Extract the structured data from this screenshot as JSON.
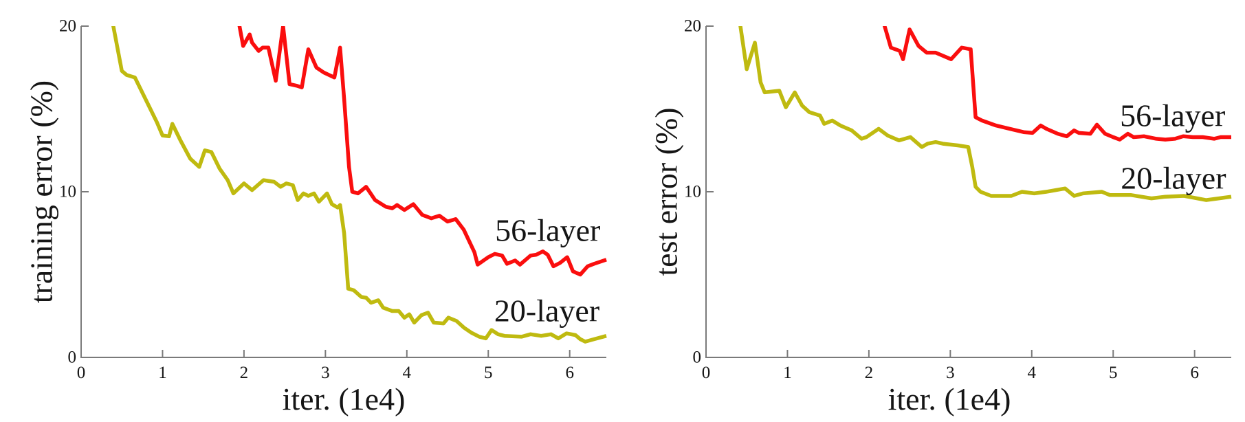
{
  "figure": {
    "background": "#ffffff",
    "description": "Two side-by-side line charts comparing 20-layer and 56-layer network error curves"
  },
  "colors": {
    "series_56_layer": "#fa0e0e",
    "series_20_layer": "#bfba10",
    "axis": "#7a7a7a",
    "text": "#151515"
  },
  "chart_data": [
    {
      "type": "line",
      "name": "training-error",
      "title": "",
      "xlabel": "iter. (1e4)",
      "ylabel": "training error (%)",
      "xlim": [
        0,
        6.45
      ],
      "ylim": [
        0,
        20
      ],
      "xticks": [
        0,
        1,
        2,
        3,
        4,
        5,
        6
      ],
      "yticks": [
        0,
        10,
        20
      ],
      "grid": false,
      "legend_position": "inline-annotations",
      "series": [
        {
          "name": "20-layer",
          "color_key": "series_20_layer",
          "points": [
            [
              0.38,
              20.4
            ],
            [
              0.5,
              17.3
            ],
            [
              0.56,
              17.05
            ],
            [
              0.66,
              16.9
            ],
            [
              0.84,
              15.1
            ],
            [
              0.93,
              14.2
            ],
            [
              1.0,
              13.4
            ],
            [
              1.08,
              13.35
            ],
            [
              1.12,
              14.1
            ],
            [
              1.22,
              13.1
            ],
            [
              1.34,
              12.0
            ],
            [
              1.45,
              11.5
            ],
            [
              1.52,
              12.5
            ],
            [
              1.6,
              12.4
            ],
            [
              1.7,
              11.4
            ],
            [
              1.8,
              10.7
            ],
            [
              1.87,
              9.9
            ],
            [
              2.0,
              10.5
            ],
            [
              2.1,
              10.1
            ],
            [
              2.24,
              10.7
            ],
            [
              2.37,
              10.6
            ],
            [
              2.45,
              10.3
            ],
            [
              2.52,
              10.5
            ],
            [
              2.6,
              10.4
            ],
            [
              2.66,
              9.5
            ],
            [
              2.73,
              9.9
            ],
            [
              2.79,
              9.75
            ],
            [
              2.86,
              9.9
            ],
            [
              2.92,
              9.4
            ],
            [
              3.02,
              9.9
            ],
            [
              3.08,
              9.25
            ],
            [
              3.15,
              9.05
            ],
            [
              3.18,
              9.2
            ],
            [
              3.23,
              7.5
            ],
            [
              3.28,
              4.15
            ],
            [
              3.35,
              4.05
            ],
            [
              3.44,
              3.65
            ],
            [
              3.5,
              3.6
            ],
            [
              3.56,
              3.3
            ],
            [
              3.65,
              3.45
            ],
            [
              3.71,
              3.0
            ],
            [
              3.82,
              2.8
            ],
            [
              3.9,
              2.8
            ],
            [
              3.97,
              2.4
            ],
            [
              4.03,
              2.6
            ],
            [
              4.09,
              2.1
            ],
            [
              4.18,
              2.55
            ],
            [
              4.26,
              2.7
            ],
            [
              4.33,
              2.1
            ],
            [
              4.45,
              2.05
            ],
            [
              4.51,
              2.4
            ],
            [
              4.61,
              2.2
            ],
            [
              4.7,
              1.8
            ],
            [
              4.79,
              1.5
            ],
            [
              4.89,
              1.25
            ],
            [
              4.97,
              1.15
            ],
            [
              5.04,
              1.65
            ],
            [
              5.12,
              1.4
            ],
            [
              5.2,
              1.3
            ],
            [
              5.41,
              1.25
            ],
            [
              5.52,
              1.4
            ],
            [
              5.65,
              1.3
            ],
            [
              5.77,
              1.4
            ],
            [
              5.86,
              1.15
            ],
            [
              5.96,
              1.45
            ],
            [
              6.07,
              1.35
            ],
            [
              6.13,
              1.1
            ],
            [
              6.19,
              0.95
            ],
            [
              6.3,
              1.1
            ],
            [
              6.45,
              1.3
            ]
          ]
        },
        {
          "name": "56-layer",
          "color_key": "series_56_layer",
          "points": [
            [
              1.93,
              20.4
            ],
            [
              1.99,
              18.8
            ],
            [
              2.07,
              19.5
            ],
            [
              2.1,
              19.0
            ],
            [
              2.18,
              18.5
            ],
            [
              2.23,
              18.7
            ],
            [
              2.3,
              18.7
            ],
            [
              2.39,
              16.7
            ],
            [
              2.48,
              20.0
            ],
            [
              2.56,
              16.5
            ],
            [
              2.65,
              16.4
            ],
            [
              2.71,
              16.3
            ],
            [
              2.79,
              18.6
            ],
            [
              2.89,
              17.5
            ],
            [
              2.98,
              17.2
            ],
            [
              3.11,
              16.9
            ],
            [
              3.18,
              18.7
            ],
            [
              3.23,
              15.6
            ],
            [
              3.29,
              11.5
            ],
            [
              3.33,
              10.0
            ],
            [
              3.4,
              9.9
            ],
            [
              3.5,
              10.3
            ],
            [
              3.61,
              9.5
            ],
            [
              3.74,
              9.1
            ],
            [
              3.82,
              9.0
            ],
            [
              3.88,
              9.2
            ],
            [
              3.97,
              8.9
            ],
            [
              4.08,
              9.25
            ],
            [
              4.19,
              8.6
            ],
            [
              4.3,
              8.4
            ],
            [
              4.4,
              8.55
            ],
            [
              4.5,
              8.2
            ],
            [
              4.6,
              8.35
            ],
            [
              4.7,
              7.7
            ],
            [
              4.83,
              6.35
            ],
            [
              4.87,
              5.6
            ],
            [
              5.0,
              6.05
            ],
            [
              5.08,
              6.25
            ],
            [
              5.17,
              6.15
            ],
            [
              5.23,
              5.65
            ],
            [
              5.33,
              5.85
            ],
            [
              5.39,
              5.6
            ],
            [
              5.52,
              6.15
            ],
            [
              5.59,
              6.2
            ],
            [
              5.67,
              6.4
            ],
            [
              5.73,
              6.2
            ],
            [
              5.8,
              5.5
            ],
            [
              5.88,
              5.7
            ],
            [
              5.97,
              6.05
            ],
            [
              6.04,
              5.2
            ],
            [
              6.13,
              5.0
            ],
            [
              6.22,
              5.5
            ],
            [
              6.3,
              5.65
            ],
            [
              6.45,
              5.9
            ]
          ]
        }
      ],
      "annotations": [
        {
          "text": "56-layer",
          "x": 5.73,
          "y": 7.68
        },
        {
          "text": "20-layer",
          "x": 5.72,
          "y": 2.82
        }
      ]
    },
    {
      "type": "line",
      "name": "test-error",
      "title": "",
      "xlabel": "iter. (1e4)",
      "ylabel": "test error (%)",
      "xlim": [
        0,
        6.45
      ],
      "ylim": [
        0,
        20
      ],
      "xticks": [
        0,
        1,
        2,
        3,
        4,
        5,
        6
      ],
      "yticks": [
        0,
        10,
        20
      ],
      "grid": false,
      "legend_position": "inline-annotations",
      "series": [
        {
          "name": "20-layer",
          "color_key": "series_20_layer",
          "points": [
            [
              0.41,
              20.4
            ],
            [
              0.5,
              17.4
            ],
            [
              0.6,
              19.0
            ],
            [
              0.67,
              16.6
            ],
            [
              0.72,
              16.0
            ],
            [
              0.9,
              16.1
            ],
            [
              0.98,
              15.1
            ],
            [
              1.09,
              16.0
            ],
            [
              1.18,
              15.2
            ],
            [
              1.27,
              14.8
            ],
            [
              1.4,
              14.6
            ],
            [
              1.45,
              14.1
            ],
            [
              1.55,
              14.3
            ],
            [
              1.65,
              14.0
            ],
            [
              1.79,
              13.7
            ],
            [
              1.91,
              13.2
            ],
            [
              1.97,
              13.3
            ],
            [
              2.12,
              13.8
            ],
            [
              2.23,
              13.4
            ],
            [
              2.37,
              13.1
            ],
            [
              2.51,
              13.3
            ],
            [
              2.65,
              12.7
            ],
            [
              2.72,
              12.9
            ],
            [
              2.82,
              13.0
            ],
            [
              2.91,
              12.9
            ],
            [
              3.09,
              12.8
            ],
            [
              3.22,
              12.7
            ],
            [
              3.27,
              11.5
            ],
            [
              3.31,
              10.3
            ],
            [
              3.37,
              10.0
            ],
            [
              3.5,
              9.75
            ],
            [
              3.75,
              9.75
            ],
            [
              3.88,
              10.0
            ],
            [
              4.03,
              9.9
            ],
            [
              4.18,
              10.0
            ],
            [
              4.41,
              10.2
            ],
            [
              4.52,
              9.75
            ],
            [
              4.63,
              9.9
            ],
            [
              4.86,
              10.0
            ],
            [
              4.96,
              9.8
            ],
            [
              5.22,
              9.8
            ],
            [
              5.47,
              9.6
            ],
            [
              5.64,
              9.7
            ],
            [
              5.87,
              9.75
            ],
            [
              6.14,
              9.5
            ],
            [
              6.3,
              9.6
            ],
            [
              6.45,
              9.7
            ]
          ]
        },
        {
          "name": "56-layer",
          "color_key": "series_56_layer",
          "points": [
            [
              2.17,
              20.4
            ],
            [
              2.27,
              18.7
            ],
            [
              2.38,
              18.5
            ],
            [
              2.42,
              18.0
            ],
            [
              2.5,
              19.8
            ],
            [
              2.61,
              18.8
            ],
            [
              2.71,
              18.4
            ],
            [
              2.82,
              18.4
            ],
            [
              3.01,
              18.0
            ],
            [
              3.14,
              18.7
            ],
            [
              3.25,
              18.6
            ],
            [
              3.31,
              14.5
            ],
            [
              3.39,
              14.3
            ],
            [
              3.56,
              14.0
            ],
            [
              3.73,
              13.8
            ],
            [
              3.9,
              13.6
            ],
            [
              4.01,
              13.55
            ],
            [
              4.11,
              14.0
            ],
            [
              4.18,
              13.8
            ],
            [
              4.32,
              13.5
            ],
            [
              4.43,
              13.35
            ],
            [
              4.52,
              13.7
            ],
            [
              4.58,
              13.55
            ],
            [
              4.72,
              13.5
            ],
            [
              4.8,
              14.05
            ],
            [
              4.9,
              13.5
            ],
            [
              5.0,
              13.3
            ],
            [
              5.08,
              13.15
            ],
            [
              5.18,
              13.5
            ],
            [
              5.25,
              13.3
            ],
            [
              5.38,
              13.35
            ],
            [
              5.53,
              13.2
            ],
            [
              5.64,
              13.15
            ],
            [
              5.76,
              13.2
            ],
            [
              5.86,
              13.35
            ],
            [
              5.98,
              13.3
            ],
            [
              6.1,
              13.3
            ],
            [
              6.24,
              13.2
            ],
            [
              6.32,
              13.3
            ],
            [
              6.45,
              13.3
            ]
          ]
        }
      ],
      "annotations": [
        {
          "text": "56-layer",
          "x": 5.73,
          "y": 14.6
        },
        {
          "text": "20-layer",
          "x": 5.74,
          "y": 10.83
        }
      ]
    }
  ]
}
